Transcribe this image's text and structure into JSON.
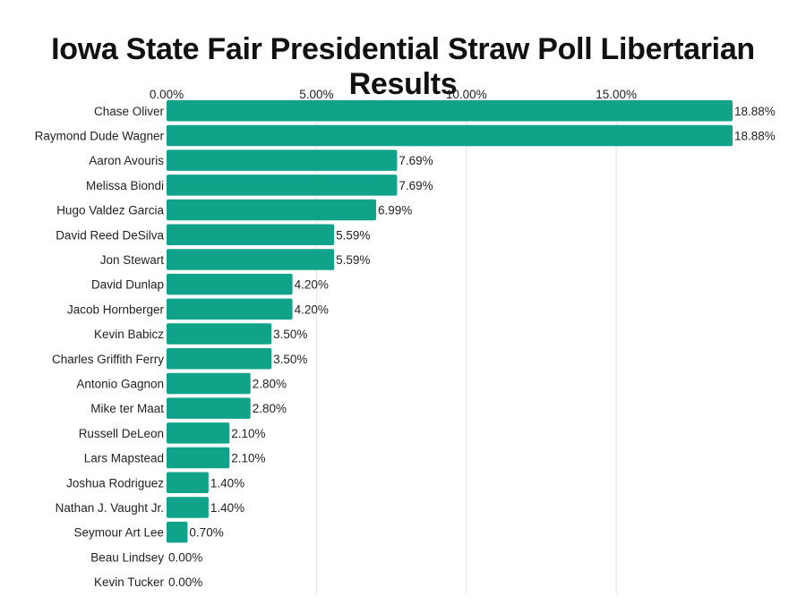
{
  "chart_data": {
    "type": "bar",
    "orientation": "horizontal",
    "title": "Iowa State Fair Presidential Straw Poll Libertarian Results",
    "xlim": [
      0,
      18.88
    ],
    "xticks": [
      "0.00%",
      "5.00%",
      "10.00%",
      "15.00%"
    ],
    "xtick_values": [
      0,
      5,
      10,
      15
    ],
    "grid": true,
    "bar_color": "#10a38a",
    "categories": [
      "Chase Oliver",
      "Raymond Dude Wagner",
      "Aaron Avouris",
      "Melissa Biondi",
      "Hugo Valdez Garcia",
      "David Reed DeSilva",
      "Jon Stewart",
      "David Dunlap",
      "Jacob Hornberger",
      "Kevin Babicz",
      "Charles Griffith Ferry",
      "Antonio Gagnon",
      "Mike ter Maat",
      "Russell DeLeon",
      "Lars Mapstead",
      "Joshua Rodriguez",
      "Nathan J. Vaught Jr.",
      "Seymour Art Lee",
      "Beau Lindsey",
      "Kevin Tucker"
    ],
    "values": [
      18.88,
      18.88,
      7.69,
      7.69,
      6.99,
      5.59,
      5.59,
      4.2,
      4.2,
      3.5,
      3.5,
      2.8,
      2.8,
      2.1,
      2.1,
      1.4,
      1.4,
      0.7,
      0.0,
      0.0
    ],
    "value_labels": [
      "18.88%",
      "18.88%",
      "7.69%",
      "7.69%",
      "6.99%",
      "5.59%",
      "5.59%",
      "4.20%",
      "4.20%",
      "3.50%",
      "3.50%",
      "2.80%",
      "2.80%",
      "2.10%",
      "2.10%",
      "1.40%",
      "1.40%",
      "0.70%",
      "0.00%",
      "0.00%"
    ]
  }
}
